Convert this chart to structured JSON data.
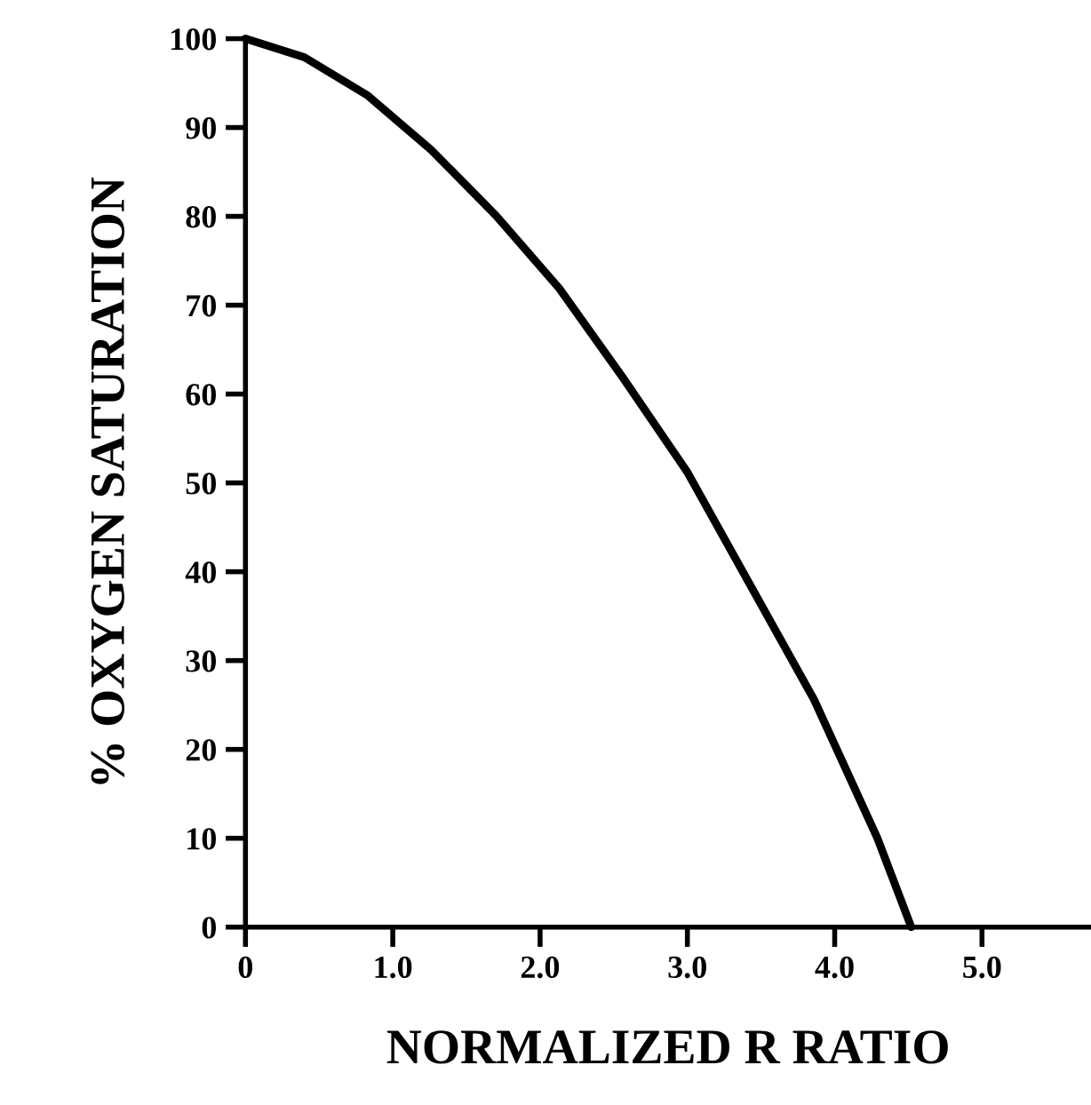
{
  "chart_data": {
    "type": "line",
    "xlabel": "NORMALIZED R RATIO",
    "ylabel": "% OXYGEN SATURATION",
    "x": [
      0,
      0.4,
      0.83,
      1.26,
      1.7,
      2.13,
      2.56,
      3.0,
      3.43,
      3.86,
      4.29,
      4.52
    ],
    "series": [
      {
        "color": "#000000",
        "values": [
          100,
          97.9,
          93.6,
          87.5,
          80.1,
          71.9,
          61.9,
          51.2,
          38.4,
          25.6,
          10.0,
          0
        ]
      }
    ],
    "xlim": [
      0,
      5.74
    ],
    "ylim": [
      0,
      100
    ],
    "xticks": [
      0,
      {
        "value": 1,
        "label": "1.0"
      },
      {
        "value": 2,
        "label": "2.0"
      },
      {
        "value": 3,
        "label": "3.0"
      },
      {
        "value": 4,
        "label": "4.0"
      },
      {
        "value": 5,
        "label": "5.0"
      }
    ],
    "yticks": [
      0,
      10,
      20,
      30,
      40,
      50,
      60,
      70,
      80,
      90,
      100
    ],
    "grid": false,
    "legend": false,
    "marker": "none",
    "line_style": "solid"
  }
}
